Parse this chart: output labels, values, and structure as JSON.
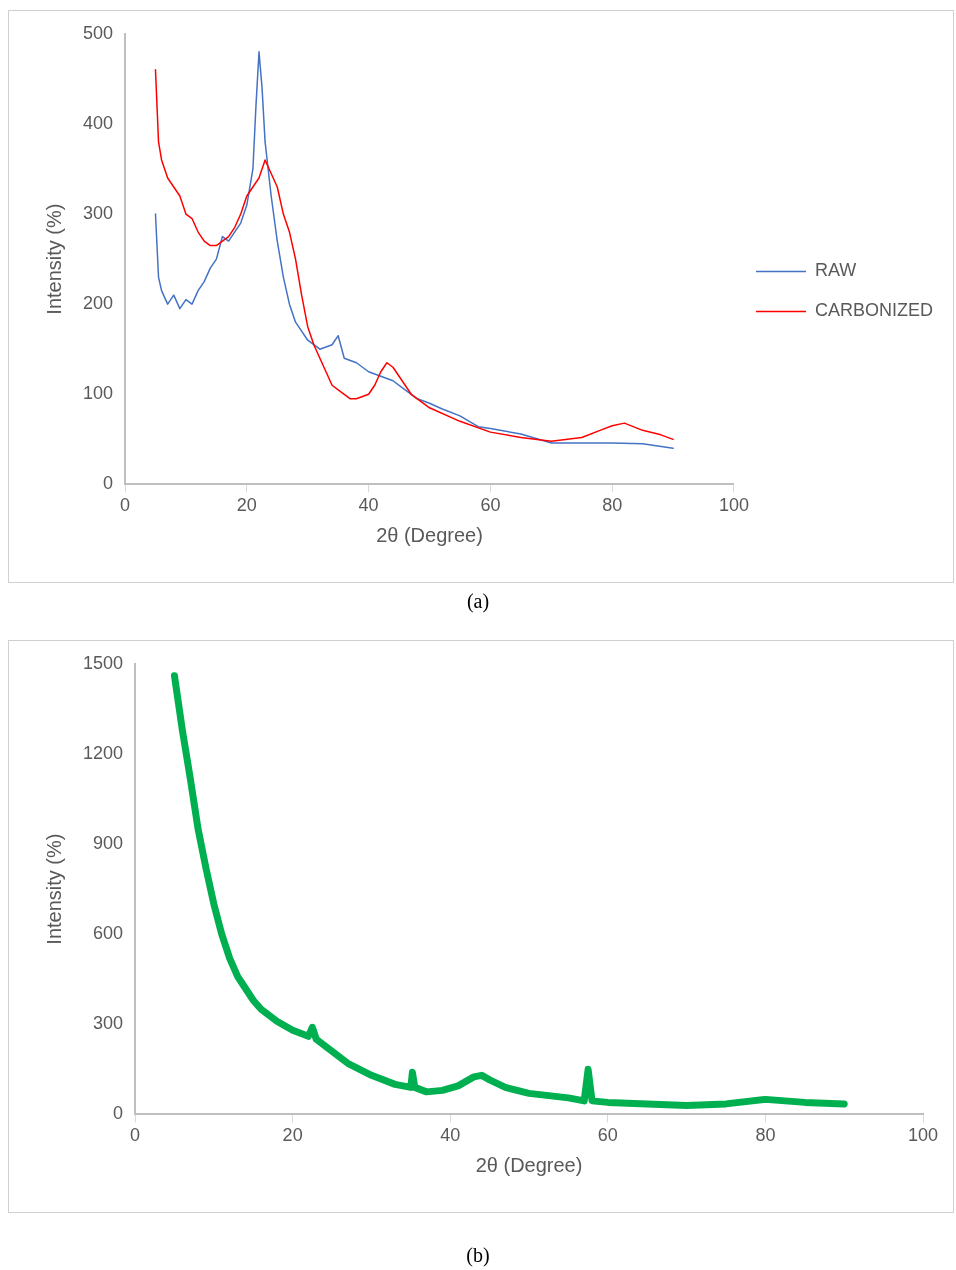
{
  "chart_data": [
    {
      "type": "line",
      "xlabel": "2θ (Degree)",
      "ylabel": "Intensity (%)",
      "xlim": [
        0,
        100
      ],
      "xticks": [
        0,
        20,
        40,
        60,
        80,
        100
      ],
      "ylim": [
        0,
        500
      ],
      "yticks": [
        0,
        100,
        200,
        300,
        400,
        500
      ],
      "grid": false,
      "legend": "right",
      "annotations": [
        "(a)"
      ],
      "series": [
        {
          "name": "RAW",
          "color": "#4472c4",
          "x": [
            5,
            5.5,
            6,
            7,
            8,
            9,
            10,
            11,
            12,
            13,
            14,
            15,
            16,
            17,
            18,
            19,
            20,
            21,
            21.5,
            22,
            22.5,
            23,
            24,
            25,
            26,
            27,
            28,
            29,
            30,
            32,
            34,
            35,
            36,
            38,
            40,
            42,
            44,
            46,
            48,
            50,
            52,
            55,
            58,
            60,
            65,
            70,
            75,
            80,
            85,
            90
          ],
          "values": [
            300,
            230,
            215,
            200,
            210,
            195,
            205,
            200,
            215,
            225,
            240,
            250,
            275,
            270,
            280,
            290,
            310,
            350,
            420,
            480,
            440,
            380,
            320,
            270,
            230,
            200,
            180,
            170,
            160,
            150,
            155,
            165,
            140,
            135,
            125,
            120,
            115,
            105,
            95,
            90,
            84,
            76,
            64,
            62,
            56,
            46,
            46,
            46,
            45,
            40
          ]
        },
        {
          "name": "CARBONIZED",
          "color": "#ff0000",
          "x": [
            5,
            5.5,
            6,
            7,
            8,
            9,
            10,
            11,
            12,
            13,
            14,
            15,
            16,
            17,
            18,
            19,
            20,
            21,
            22,
            23,
            24,
            25,
            26,
            27,
            28,
            29,
            30,
            31,
            32,
            33,
            34,
            35,
            36,
            37,
            38,
            40,
            41,
            42,
            43,
            44,
            45,
            47,
            50,
            55,
            60,
            65,
            70,
            75,
            78,
            80,
            82,
            85,
            88,
            90
          ],
          "values": [
            460,
            380,
            360,
            340,
            330,
            320,
            300,
            295,
            280,
            270,
            265,
            265,
            270,
            275,
            285,
            300,
            320,
            330,
            340,
            360,
            345,
            330,
            300,
            280,
            250,
            210,
            175,
            155,
            140,
            125,
            110,
            105,
            100,
            95,
            95,
            100,
            110,
            125,
            135,
            130,
            120,
            100,
            85,
            70,
            58,
            52,
            48,
            52,
            60,
            65,
            68,
            60,
            55,
            50
          ]
        }
      ]
    },
    {
      "type": "line",
      "xlabel": "2θ (Degree)",
      "ylabel": "Intensity (%)",
      "xlim": [
        0,
        100
      ],
      "xticks": [
        0,
        20,
        40,
        60,
        80,
        100
      ],
      "ylim": [
        0,
        1500
      ],
      "yticks": [
        0,
        300,
        600,
        900,
        1200,
        1500
      ],
      "grid": false,
      "annotations": [
        "(b)"
      ],
      "series": [
        {
          "color": "#00b050",
          "x": [
            5,
            5.5,
            6,
            7,
            8,
            9,
            10,
            11,
            12,
            13,
            14,
            15,
            16,
            17,
            18,
            20,
            22,
            22.5,
            23,
            25,
            27,
            30,
            33,
            35,
            35.2,
            35.5,
            37,
            39,
            41,
            43,
            44,
            45,
            47,
            50,
            55,
            57,
            57.5,
            58,
            60,
            65,
            70,
            75,
            80,
            85,
            90
          ],
          "values": [
            1460,
            1370,
            1280,
            1120,
            950,
            820,
            700,
            600,
            520,
            460,
            420,
            380,
            350,
            330,
            310,
            280,
            260,
            290,
            250,
            210,
            170,
            130,
            100,
            90,
            140,
            90,
            75,
            80,
            95,
            125,
            130,
            115,
            90,
            70,
            55,
            45,
            150,
            45,
            40,
            35,
            30,
            35,
            50,
            40,
            35
          ]
        }
      ]
    }
  ]
}
